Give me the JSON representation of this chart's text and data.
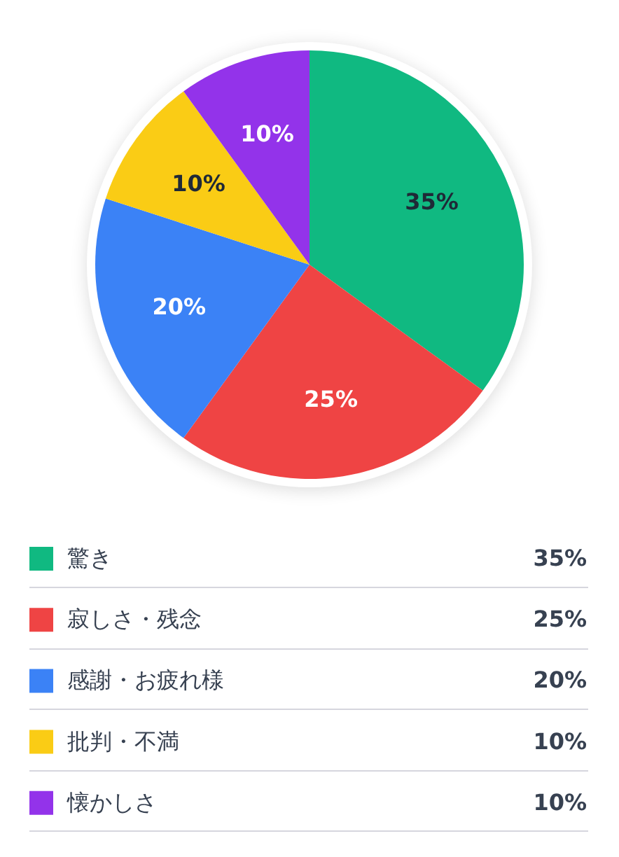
{
  "chart_data": {
    "type": "pie",
    "categories": [
      "驚き",
      "寂しさ・残念",
      "感謝・お疲れ様",
      "批判・不満",
      "懐かしさ"
    ],
    "values": [
      35,
      25,
      20,
      10,
      10
    ],
    "colors": [
      "#10b981",
      "#ef4444",
      "#3b82f6",
      "#facc15",
      "#9333ea"
    ],
    "value_labels": [
      "35%",
      "25%",
      "20%",
      "10%",
      "10%"
    ],
    "legend": "bottom"
  }
}
